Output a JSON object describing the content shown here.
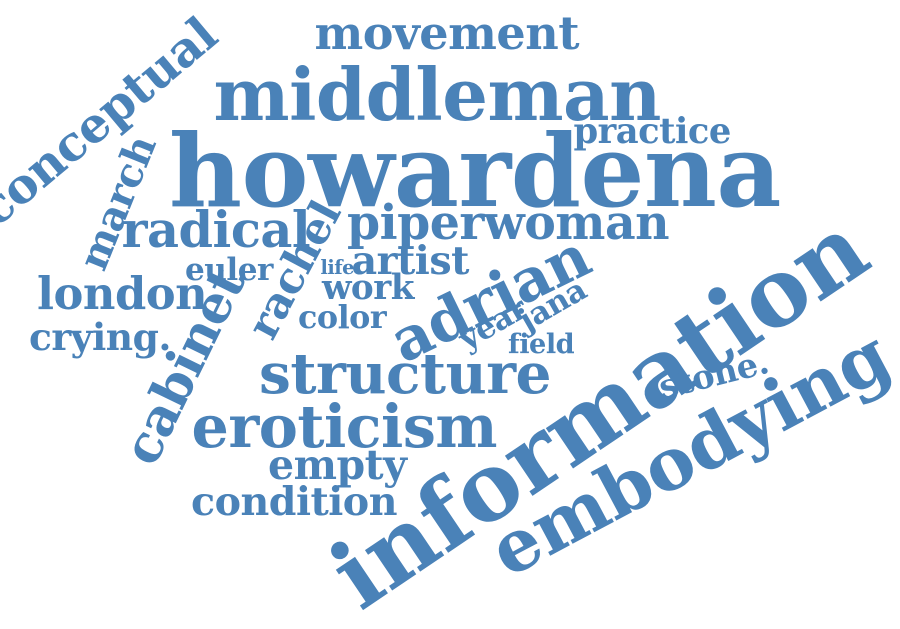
{
  "colors": {
    "word": "#4A82B8",
    "background": "#FFFFFF"
  },
  "words": [
    {
      "key": "movement",
      "text": "movement"
    },
    {
      "key": "middleman",
      "text": "middleman"
    },
    {
      "key": "conceptual",
      "text": "conceptual"
    },
    {
      "key": "practice",
      "text": "practice"
    },
    {
      "key": "howardena",
      "text": "howardena"
    },
    {
      "key": "march",
      "text": "march"
    },
    {
      "key": "radical",
      "text": "radical"
    },
    {
      "key": "rachel",
      "text": "rachel"
    },
    {
      "key": "piperwoman",
      "text": "piperwoman"
    },
    {
      "key": "information",
      "text": "information"
    },
    {
      "key": "euler",
      "text": "euler"
    },
    {
      "key": "life",
      "text": "life"
    },
    {
      "key": "artist",
      "text": "artist"
    },
    {
      "key": "adrian",
      "text": "adrian"
    },
    {
      "key": "london",
      "text": "london"
    },
    {
      "key": "work",
      "text": "work"
    },
    {
      "key": "cabinet",
      "text": "cabinet"
    },
    {
      "key": "color",
      "text": "color"
    },
    {
      "key": "year",
      "text": "year"
    },
    {
      "key": "jana",
      "text": "jana"
    },
    {
      "key": "crying",
      "text": "crying."
    },
    {
      "key": "field",
      "text": "field"
    },
    {
      "key": "structure",
      "text": "structure"
    },
    {
      "key": "stone",
      "text": "stone."
    },
    {
      "key": "embodying",
      "text": "embodying"
    },
    {
      "key": "eroticism",
      "text": "eroticism"
    },
    {
      "key": "empty",
      "text": "empty"
    },
    {
      "key": "condition",
      "text": "condition"
    }
  ]
}
